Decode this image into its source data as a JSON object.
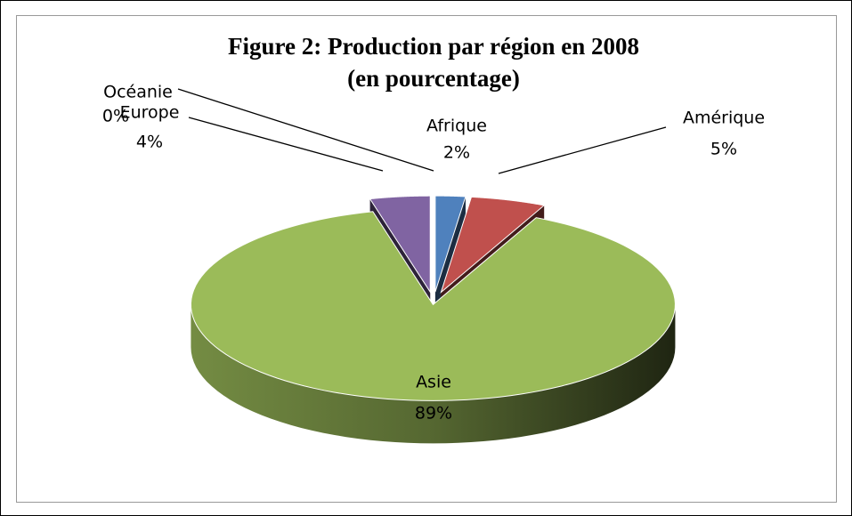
{
  "chart_data": {
    "type": "pie",
    "title": "Figure 2: Production par région en 2008",
    "subtitle": "(en pourcentage)",
    "categories": [
      "Afrique",
      "Amérique",
      "Asie",
      "Europe",
      "Océanie"
    ],
    "values": [
      2,
      5,
      89,
      4,
      0
    ],
    "value_labels": [
      "2%",
      "5%",
      "89%",
      "4%",
      "0%"
    ],
    "colors": [
      "#4f81bd",
      "#c0504d",
      "#9bbb59",
      "#8064a2",
      "#4bacc6"
    ]
  }
}
